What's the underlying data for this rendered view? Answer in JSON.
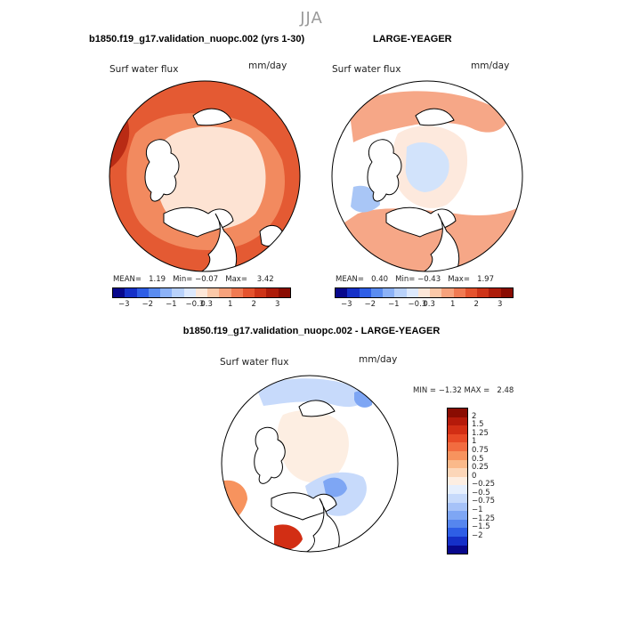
{
  "page": {
    "season": "JJA",
    "title_left": "b1850.f19_g17.validation_nuopc.002 (yrs 1-30)",
    "title_right": "LARGE-YEAGER",
    "title_bottom": "b1850.f19_g17.validation_nuopc.002 - LARGE-YEAGER"
  },
  "panels": {
    "left": {
      "variable": "Surf water flux",
      "units": "mm/day",
      "mean_label": "MEAN=",
      "mean": "1.19",
      "min_label": "Min=",
      "min": "−0.07",
      "max_label": "Max=",
      "max": "3.42"
    },
    "right": {
      "variable": "Surf water flux",
      "units": "mm/day",
      "mean_label": "MEAN=",
      "mean": "0.40",
      "min_label": "Min=",
      "min": "−0.43",
      "max_label": "Max=",
      "max": "1.97"
    },
    "diff": {
      "variable": "Surf water flux",
      "units": "mm/day",
      "min_label": "MIN =",
      "min": "−1.32",
      "max_label": "MAX =",
      "max": "2.48"
    }
  },
  "colorbar_top": {
    "colors": [
      "#08088c",
      "#1530c8",
      "#2e5ee6",
      "#5a8cf0",
      "#8cb2f7",
      "#b9d2fb",
      "#dde9fd",
      "#fde7d8",
      "#fbc8a8",
      "#f7a27c",
      "#f07a52",
      "#e4532e",
      "#cd3418",
      "#ad1c0a",
      "#8a0c02"
    ],
    "ticks": [
      "−3",
      "−2",
      "−1",
      "−0.3",
      "0.3",
      "1",
      "2",
      "3"
    ]
  },
  "colorbar_diff": {
    "colors_top_to_bottom": [
      "#8a0c02",
      "#b51a0a",
      "#d22e14",
      "#e84a26",
      "#f26c40",
      "#f7935e",
      "#fab98a",
      "#fcd6b8",
      "#fdeee2",
      "#e6effd",
      "#c7dafb",
      "#a6c2f8",
      "#7ea6f4",
      "#5686ee",
      "#2e5ee6",
      "#1530c8",
      "#08088c"
    ],
    "ticks": [
      "2",
      "1.5",
      "1.25",
      "1",
      "0.75",
      "0.5",
      "0.25",
      "0",
      "−0.25",
      "−0.5",
      "−0.75",
      "−1",
      "−1.25",
      "−1.5",
      "−2"
    ]
  },
  "map_colors": {
    "land": "#ffffff",
    "ocean_left_outer": "#e45a33",
    "ocean_left_mid": "#f28a5f",
    "ocean_left_inner": "#fde3d3",
    "ocean_left_dark": "#b92b14",
    "ocean_right_base": "#f6a787",
    "ocean_right_pale": "#fde9dd",
    "ocean_right_blue": "#d2e3fb",
    "ocean_right_blue2": "#a9c6f6",
    "diff_pale": "#fdeee2",
    "diff_blue": "#c7dafb",
    "diff_blue2": "#7ea6f4",
    "diff_red": "#f7935e",
    "diff_red2": "#d22e14"
  }
}
